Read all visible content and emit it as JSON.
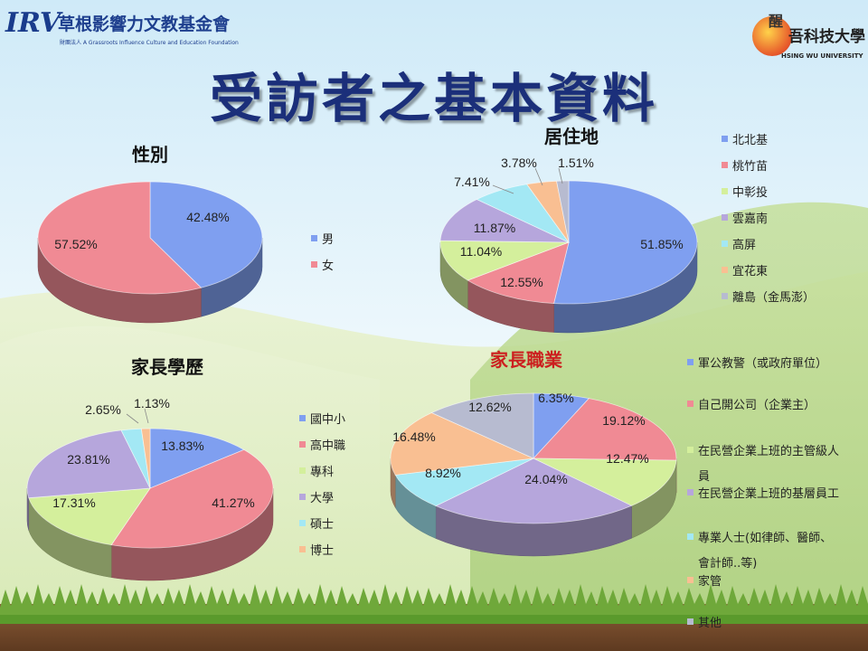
{
  "header": {
    "logo_left_mark": "IRV",
    "logo_left_org": "草根影響力文教基金會",
    "logo_left_sub": "財團法人 A Grassroots Influence Culture and Education Foundation",
    "logo_right_top": "醒",
    "logo_right_name": "吾科技大學",
    "logo_right_en": "HSING WU UNIVERSITY"
  },
  "title": "受訪者之基本資料",
  "colors": {
    "blue": "#7f9ff0",
    "red": "#f08a94",
    "green": "#d4ef9c",
    "purple": "#b6a6dc",
    "cyan": "#a3e8f4",
    "orange": "#f9bf92",
    "gray": "#b7bbd0"
  },
  "chart_data": [
    {
      "id": "gender",
      "type": "pie",
      "title": "性別",
      "labels": [
        "男",
        "女"
      ],
      "values": [
        42.48,
        57.52
      ],
      "value_labels": [
        "42.48%",
        "57.52%"
      ],
      "colors": [
        "#7f9ff0",
        "#f08a94"
      ],
      "legend": "right"
    },
    {
      "id": "residence",
      "type": "pie",
      "title": "居住地",
      "labels": [
        "北北基",
        "桃竹苗",
        "中彰投",
        "雲嘉南",
        "高屏",
        "宜花東",
        "離島（金馬澎）"
      ],
      "values": [
        51.85,
        12.55,
        11.04,
        11.87,
        7.41,
        3.78,
        1.51
      ],
      "value_labels": [
        "51.85%",
        "12.55%",
        "11.04%",
        "11.87%",
        "7.41%",
        "3.78%",
        "1.51%"
      ],
      "colors": [
        "#7f9ff0",
        "#f08a94",
        "#d4ef9c",
        "#b6a6dc",
        "#a3e8f4",
        "#f9bf92",
        "#b7bbd0"
      ],
      "legend": "right"
    },
    {
      "id": "education",
      "type": "pie",
      "title": "家長學歷",
      "labels": [
        "國中小",
        "高中職",
        "專科",
        "大學",
        "碩士",
        "博士"
      ],
      "values": [
        13.83,
        41.27,
        17.31,
        23.81,
        2.65,
        1.13
      ],
      "value_labels": [
        "13.83%",
        "41.27%",
        "17.31%",
        "23.81%",
        "2.65%",
        "1.13%"
      ],
      "colors": [
        "#7f9ff0",
        "#f08a94",
        "#d4ef9c",
        "#b6a6dc",
        "#a3e8f4",
        "#f9bf92"
      ],
      "legend": "right"
    },
    {
      "id": "occupation",
      "type": "pie",
      "title": "家長職業",
      "labels": [
        "軍公教警（或政府單位）",
        "自己開公司（企業主）",
        "在民營企業上班的主管級人員",
        "在民營企業上班的基層員工",
        "專業人士(如律師、醫師、會計師..等)",
        "家管",
        "其他"
      ],
      "values": [
        6.35,
        19.12,
        12.47,
        24.04,
        8.92,
        16.48,
        12.62
      ],
      "value_labels": [
        "6.35%",
        "19.12%",
        "12.47%",
        "24.04%",
        "8.92%",
        "16.48%",
        "12.62%"
      ],
      "colors": [
        "#7f9ff0",
        "#f08a94",
        "#d4ef9c",
        "#b6a6dc",
        "#a3e8f4",
        "#f9bf92",
        "#b7bbd0"
      ],
      "legend": "right"
    }
  ]
}
